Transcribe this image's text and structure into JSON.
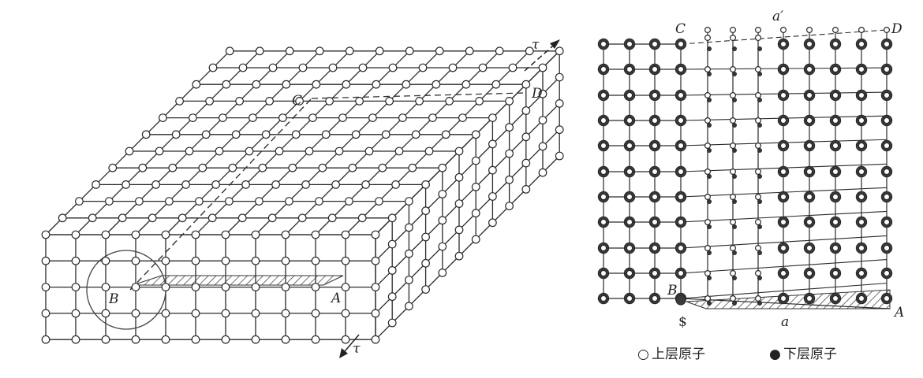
{
  "left_figure": {
    "labels": {
      "tau_top": "τ",
      "tau_bottom": "τ",
      "C": "C",
      "D": "D",
      "B": "B",
      "A": "A"
    }
  },
  "right_figure": {
    "labels": {
      "C": "C",
      "a_prime": "a′",
      "D": "D",
      "B": "B",
      "A": "A",
      "s": "$",
      "a": "a"
    },
    "legend": {
      "upper_symbol": "○",
      "upper": "上层原子",
      "lower_symbol": "●",
      "lower": "下层原子"
    }
  },
  "colors": {
    "line": "#2a2a2a",
    "atom_fill": "#ffffff",
    "lower_atom": "#3a3a3a"
  }
}
